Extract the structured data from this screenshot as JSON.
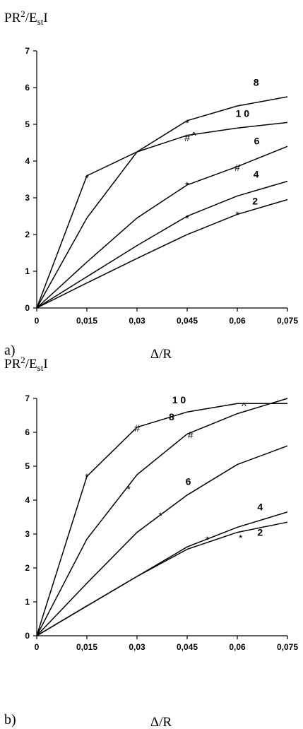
{
  "chart_data": [
    {
      "type": "line",
      "panel_label": "a)",
      "ylabel": "PR²/EstI",
      "xlabel": "Δ/R",
      "xlim": [
        0,
        0.075
      ],
      "ylim": [
        0,
        7
      ],
      "x_ticks": [
        "0",
        "0,015",
        "0,03",
        "0,045",
        "0,06",
        "0,075"
      ],
      "y_ticks": [
        "0",
        "1",
        "2",
        "3",
        "4",
        "5",
        "6",
        "7"
      ],
      "grid": false,
      "series": [
        {
          "name": "2",
          "x": [
            0,
            0.015,
            0.03,
            0.045,
            0.06,
            0.075
          ],
          "y": [
            0,
            0.68,
            1.35,
            2.0,
            2.55,
            2.95
          ]
        },
        {
          "name": "4",
          "x": [
            0,
            0.015,
            0.03,
            0.045,
            0.06,
            0.075
          ],
          "y": [
            0,
            0.85,
            1.7,
            2.5,
            3.05,
            3.45
          ]
        },
        {
          "name": "6",
          "x": [
            0,
            0.015,
            0.03,
            0.045,
            0.06,
            0.075
          ],
          "y": [
            0,
            1.25,
            2.45,
            3.35,
            3.85,
            4.4
          ]
        },
        {
          "name": "8",
          "x": [
            0,
            0.015,
            0.03,
            0.045,
            0.06,
            0.075
          ],
          "y": [
            0,
            2.45,
            4.25,
            5.1,
            5.5,
            5.75
          ]
        },
        {
          "name": "1 0",
          "x": [
            0,
            0.015,
            0.03,
            0.045,
            0.06,
            0.075
          ],
          "y": [
            0,
            3.6,
            4.25,
            4.7,
            4.9,
            5.05
          ]
        }
      ],
      "annotations": [
        {
          "text": "*",
          "x": 0.015,
          "y": 3.6
        },
        {
          "text": "*",
          "x": 0.045,
          "y": 5.1
        },
        {
          "text": "#",
          "x": 0.045,
          "y": 4.65
        },
        {
          "text": "^",
          "x": 0.047,
          "y": 4.72
        },
        {
          "text": "*",
          "x": 0.045,
          "y": 3.4
        },
        {
          "text": "#",
          "x": 0.06,
          "y": 3.85
        },
        {
          "text": "*",
          "x": 0.045,
          "y": 2.5
        },
        {
          "text": "*",
          "x": 0.06,
          "y": 2.6
        }
      ]
    },
    {
      "type": "line",
      "panel_label": "b)",
      "ylabel": "PR²/EstI",
      "xlabel": "Δ/R",
      "xlim": [
        0,
        0.075
      ],
      "ylim": [
        0,
        7
      ],
      "x_ticks": [
        "0",
        "0,015",
        "0,03",
        "0,045",
        "0,06",
        "0,075"
      ],
      "y_ticks": [
        "0",
        "1",
        "2",
        "3",
        "4",
        "5",
        "6",
        "7"
      ],
      "grid": false,
      "series": [
        {
          "name": "2",
          "x": [
            0,
            0.015,
            0.03,
            0.045,
            0.06,
            0.075
          ],
          "y": [
            0,
            0.88,
            1.75,
            2.55,
            3.05,
            3.35
          ]
        },
        {
          "name": "4",
          "x": [
            0,
            0.015,
            0.03,
            0.045,
            0.06,
            0.075
          ],
          "y": [
            0,
            0.88,
            1.75,
            2.62,
            3.2,
            3.65
          ]
        },
        {
          "name": "6",
          "x": [
            0,
            0.015,
            0.03,
            0.045,
            0.06,
            0.075
          ],
          "y": [
            0,
            1.55,
            3.05,
            4.15,
            5.05,
            5.6
          ]
        },
        {
          "name": "8",
          "x": [
            0,
            0.015,
            0.03,
            0.045,
            0.06,
            0.075
          ],
          "y": [
            0,
            2.85,
            4.75,
            5.95,
            6.55,
            7.0
          ]
        },
        {
          "name": "1 0",
          "x": [
            0,
            0.015,
            0.03,
            0.045,
            0.06,
            0.075
          ],
          "y": [
            0,
            4.7,
            6.15,
            6.6,
            6.85,
            6.85
          ]
        }
      ],
      "annotations": [
        {
          "text": "*",
          "x": 0.015,
          "y": 4.75
        },
        {
          "text": "#",
          "x": 0.03,
          "y": 6.15
        },
        {
          "text": "^",
          "x": 0.062,
          "y": 6.8
        },
        {
          "text": "*",
          "x": 0.0275,
          "y": 4.4
        },
        {
          "text": "#",
          "x": 0.046,
          "y": 5.95
        },
        {
          "text": "*",
          "x": 0.037,
          "y": 3.6
        },
        {
          "text": "*",
          "x": 0.051,
          "y": 2.9
        },
        {
          "text": "*",
          "x": 0.061,
          "y": 2.95
        }
      ]
    }
  ]
}
